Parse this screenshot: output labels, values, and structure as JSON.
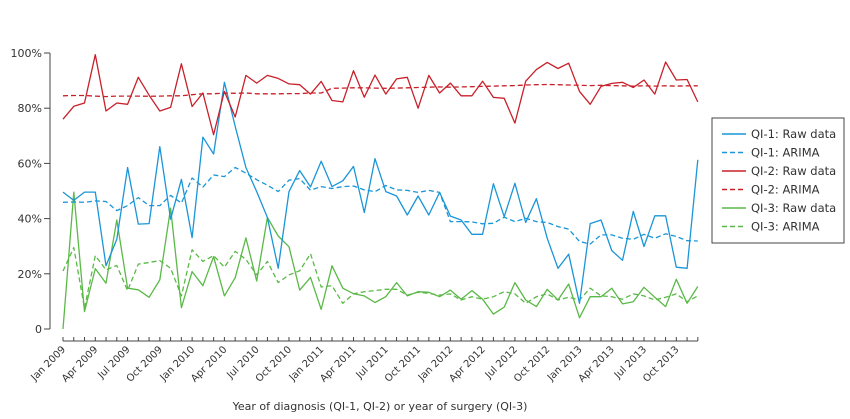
{
  "chart_data": {
    "type": "line",
    "title": "",
    "xlabel": "Year of diagnosis (QI-1, QI-2) or year of surgery (QI-3)",
    "ylabel": "",
    "ylim": [
      0,
      100
    ],
    "y_ticks": [
      "0",
      "20%",
      "40%",
      "60%",
      "80%",
      "100%"
    ],
    "y_tick_values": [
      0,
      20,
      40,
      60,
      80,
      100
    ],
    "x_start": "Jan 2009",
    "x_count": 60,
    "x_tick_labels": [
      "Jan 2009",
      "Apr 2009",
      "Jul 2009",
      "Oct 2009",
      "Jan 2010",
      "Apr 2010",
      "Jul 2010",
      "Oct 2010",
      "Jan 2011",
      "Apr 2011",
      "Jul 2011",
      "Oct 2011",
      "Jan 2012",
      "Apr 2012",
      "Jul 2012",
      "Oct 2012",
      "Jan 2013",
      "Apr 2013",
      "Jul 2013",
      "Oct 2013"
    ],
    "legend_position": "right",
    "grid": false,
    "series": [
      {
        "name": "QI-1: Raw data",
        "color": "#1a96d8",
        "dashed": false,
        "values": [
          49.6,
          46.6,
          49.6,
          49.6,
          22.9,
          32.5,
          58.5,
          38,
          38.2,
          66.1,
          39.8,
          54.2,
          33.1,
          69.5,
          63.4,
          89.4,
          73.4,
          58.5,
          49.8,
          40.4,
          22,
          49.8,
          57.4,
          51.5,
          60.8,
          51.6,
          53.7,
          58.9,
          42.2,
          61.7,
          49.8,
          48.2,
          41.3,
          48.2,
          41.3,
          49.5,
          40.9,
          39.5,
          34.3,
          34.3,
          52.6,
          40.7,
          52.8,
          38.6,
          47.2,
          32.9,
          22,
          27.1,
          9.3,
          38.2,
          39.5,
          28.4,
          24.9,
          42.6,
          29.9,
          41,
          41,
          22.4,
          22,
          61.3
        ]
      },
      {
        "name": "QI-1: ARIMA",
        "color": "#1a96d8",
        "dashed": true,
        "values": [
          45.9,
          46,
          45.9,
          46.4,
          46.2,
          42.9,
          44.7,
          47.6,
          44.7,
          44.7,
          48.4,
          45.6,
          54.7,
          51.4,
          55.8,
          55.2,
          58.5,
          56.5,
          54.1,
          52.1,
          49.8,
          53.9,
          54.5,
          50.3,
          51.6,
          50.9,
          51.6,
          51.8,
          50.4,
          49.8,
          52,
          50.4,
          50.2,
          49.5,
          50.2,
          49.5,
          38.9,
          38.9,
          38.8,
          38.1,
          38.3,
          40.5,
          38.9,
          40.1,
          38.9,
          38.6,
          37.1,
          36.2,
          31.7,
          30.8,
          34.1,
          34.1,
          32.9,
          32.5,
          34.3,
          32.9,
          34.5,
          33.5,
          32,
          31.9
        ]
      },
      {
        "name": "QI-2: Raw data",
        "color": "#c8202a",
        "dashed": false,
        "values": [
          76,
          80.7,
          81.9,
          99.4,
          79,
          81.9,
          81.4,
          91.2,
          84.7,
          79,
          80.3,
          96.1,
          80.6,
          85.5,
          70.4,
          86.1,
          76.8,
          91.9,
          89.1,
          91.9,
          90.8,
          88.8,
          88.5,
          85.1,
          89.7,
          82.8,
          82.3,
          93.6,
          84,
          92,
          85.1,
          90.6,
          91.2,
          80,
          91.9,
          85.5,
          89.1,
          84.5,
          84.5,
          89.8,
          83.9,
          83.6,
          74.6,
          89.8,
          94,
          96.6,
          94.4,
          96.3,
          86.1,
          81.4,
          87.9,
          89,
          89.4,
          87.5,
          90.2,
          85.1,
          96.7,
          90.2,
          90.4,
          82.3
        ]
      },
      {
        "name": "QI-2: ARIMA",
        "color": "#c8202a",
        "dashed": true,
        "values": [
          84.5,
          84.6,
          84.6,
          84.4,
          84.2,
          84.4,
          84.4,
          84.4,
          84.3,
          84.4,
          84.5,
          84.5,
          84.9,
          85.2,
          85.2,
          85.5,
          85.4,
          85.5,
          85.2,
          85.2,
          85.2,
          85.3,
          85.3,
          85.5,
          85.5,
          87.2,
          87.3,
          87.4,
          87.4,
          87.3,
          87.2,
          87.3,
          87.4,
          87.5,
          87.6,
          87.7,
          87.6,
          87.7,
          87.8,
          87.9,
          88,
          88.1,
          88.2,
          88.4,
          88.5,
          88.6,
          88.5,
          88.4,
          88.3,
          88.2,
          88.3,
          88.2,
          88.1,
          88,
          88.1,
          88,
          88.1,
          88,
          88.1,
          88.1
        ]
      },
      {
        "name": "QI-3: Raw data",
        "color": "#5ab947",
        "dashed": false,
        "values": [
          0,
          49.6,
          6.3,
          21.9,
          16.6,
          39.5,
          14.8,
          14.2,
          11.5,
          17.8,
          43.8,
          7.7,
          20.8,
          15.7,
          26.2,
          12,
          18.6,
          33,
          17.4,
          40.4,
          33.7,
          29.8,
          14.1,
          18.7,
          7.1,
          22.9,
          14.8,
          12.8,
          12,
          9.6,
          11.7,
          16.8,
          12,
          13.5,
          13.3,
          11.7,
          14.1,
          10.8,
          13.9,
          10.8,
          5.4,
          7.9,
          16.8,
          10.5,
          8.1,
          14.4,
          10.5,
          16.3,
          4.1,
          11.7,
          11.7,
          14.8,
          9.1,
          9.9,
          15.1,
          11.5,
          8.1,
          18,
          9.3,
          15.4
        ]
      },
      {
        "name": "QI-3: ARIMA",
        "color": "#5ab947",
        "dashed": true,
        "values": [
          21,
          29.5,
          7.5,
          26.6,
          21.4,
          23,
          13.9,
          23.5,
          24.1,
          24.8,
          22,
          12,
          28.7,
          24.5,
          26.6,
          22.4,
          28.1,
          25.2,
          19.6,
          24.5,
          16.8,
          19.6,
          21.1,
          27.3,
          15.2,
          15.7,
          9.3,
          12.7,
          13.5,
          13.9,
          14.4,
          14.4,
          12.3,
          13.3,
          12.9,
          12.3,
          12.7,
          10.5,
          11.7,
          10.8,
          11.7,
          13.5,
          12.7,
          9.3,
          11.7,
          12.7,
          10.5,
          11.5,
          10.5,
          14.8,
          12,
          11.7,
          10.8,
          12.7,
          12,
          10.5,
          11.5,
          12.7,
          9.9,
          12
        ]
      }
    ]
  }
}
